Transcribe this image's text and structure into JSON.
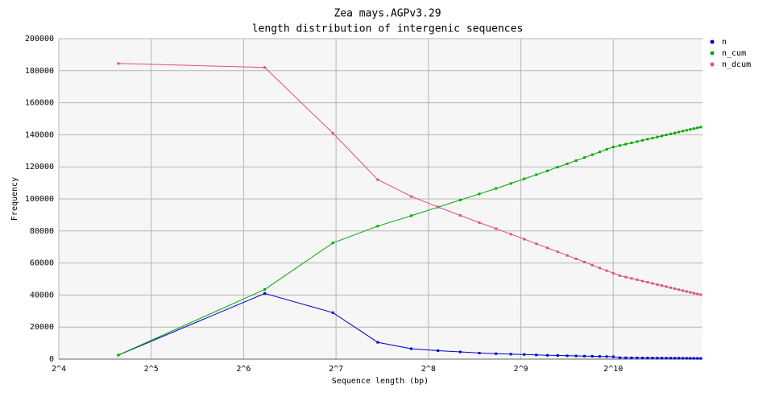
{
  "chart_data": {
    "type": "line",
    "title": "Zea mays.AGPv3.29",
    "subtitle": "length distribution of intergenic sequences",
    "x_label": "Sequence length (bp)",
    "y_label": "Frequency",
    "log_x_base": 2,
    "grid": true,
    "legend": "top-right",
    "x": [
      25,
      75,
      125,
      175,
      225,
      275,
      325,
      375,
      425,
      475,
      525,
      575,
      625,
      675,
      725,
      775,
      825,
      875,
      925,
      975,
      1025,
      1075,
      1125,
      1175,
      1225,
      1275,
      1325,
      1375,
      1425,
      1475,
      1525,
      1575,
      1625,
      1675,
      1725,
      1775,
      1825,
      1875,
      1925,
      1975
    ],
    "series": [
      {
        "name": "n",
        "color": "#0000cc",
        "values": [
          2500,
          41000,
          29000,
          10500,
          6500,
          5300,
          4500,
          3800,
          3400,
          3100,
          2900,
          2600,
          2400,
          2300,
          2100,
          2000,
          1900,
          1800,
          1700,
          1600,
          1500,
          900,
          850,
          820,
          790,
          760,
          730,
          700,
          680,
          660,
          640,
          620,
          600,
          580,
          560,
          540,
          520,
          500,
          480,
          460
        ]
      },
      {
        "name": "n_cum",
        "color": "#00aa00",
        "values": [
          2500,
          43500,
          72500,
          83000,
          89500,
          94800,
          99300,
          103100,
          106500,
          109600,
          112500,
          115100,
          117500,
          119800,
          121900,
          123900,
          125800,
          127600,
          129300,
          130900,
          132400,
          133300,
          134150,
          134970,
          135760,
          136520,
          137250,
          137950,
          138630,
          139290,
          139930,
          140550,
          141150,
          141730,
          142290,
          142830,
          143350,
          143850,
          144330,
          144790
        ]
      },
      {
        "name": "n_dcum",
        "color": "#e0507a",
        "values": [
          184500,
          182000,
          141000,
          112000,
          101500,
          95000,
          89700,
          85200,
          81400,
          78000,
          74900,
          72000,
          69400,
          67000,
          64700,
          62600,
          60600,
          58700,
          56900,
          55200,
          53600,
          52100,
          51200,
          50350,
          49530,
          48740,
          47980,
          47250,
          46550,
          45870,
          45210,
          44570,
          43950,
          43350,
          42770,
          42210,
          41670,
          41150,
          40650,
          40170
        ]
      }
    ],
    "xlim": [
      16,
      2000
    ],
    "xticks": [
      {
        "value": 16,
        "label": "2^4"
      },
      {
        "value": 32,
        "label": "2^5"
      },
      {
        "value": 64,
        "label": "2^6"
      },
      {
        "value": 128,
        "label": "2^7"
      },
      {
        "value": 256,
        "label": "2^8"
      },
      {
        "value": 512,
        "label": "2^9"
      },
      {
        "value": 1024,
        "label": "2^10"
      }
    ],
    "ylim": [
      0,
      200000
    ],
    "yticks": [
      0,
      20000,
      40000,
      60000,
      80000,
      100000,
      120000,
      140000,
      160000,
      180000,
      200000
    ]
  }
}
